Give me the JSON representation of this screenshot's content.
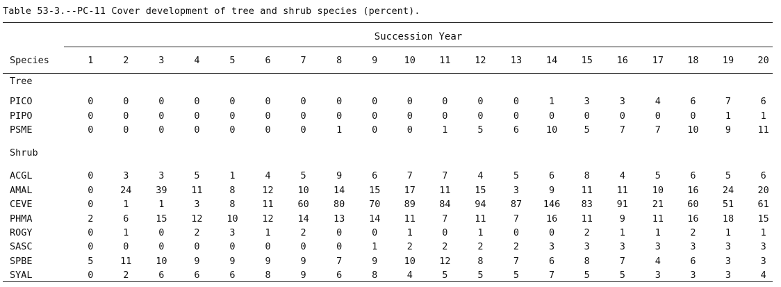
{
  "title": "Table 53-3.--PC-11 Cover development of tree and shrub species (percent).",
  "span_header": "Succession Year",
  "species_header": "Species",
  "years": [
    "1",
    "2",
    "3",
    "4",
    "5",
    "6",
    "7",
    "8",
    "9",
    "10",
    "11",
    "12",
    "13",
    "14",
    "15",
    "16",
    "17",
    "18",
    "19",
    "20"
  ],
  "sections": [
    {
      "label": "Tree",
      "rows": [
        {
          "species": "PICO",
          "values": [
            "0",
            "0",
            "0",
            "0",
            "0",
            "0",
            "0",
            "0",
            "0",
            "0",
            "0",
            "0",
            "0",
            "1",
            "3",
            "3",
            "4",
            "6",
            "7",
            "6"
          ]
        },
        {
          "species": "PIPO",
          "values": [
            "0",
            "0",
            "0",
            "0",
            "0",
            "0",
            "0",
            "0",
            "0",
            "0",
            "0",
            "0",
            "0",
            "0",
            "0",
            "0",
            "0",
            "0",
            "1",
            "1"
          ]
        },
        {
          "species": "PSME",
          "values": [
            "0",
            "0",
            "0",
            "0",
            "0",
            "0",
            "0",
            "1",
            "0",
            "0",
            "1",
            "5",
            "6",
            "10",
            "5",
            "7",
            "7",
            "10",
            "9",
            "11"
          ]
        }
      ]
    },
    {
      "label": "Shrub",
      "rows": [
        {
          "species": "ACGL",
          "values": [
            "0",
            "3",
            "3",
            "5",
            "1",
            "4",
            "5",
            "9",
            "6",
            "7",
            "7",
            "4",
            "5",
            "6",
            "8",
            "4",
            "5",
            "6",
            "5",
            "6"
          ]
        },
        {
          "species": "AMAL",
          "values": [
            "0",
            "24",
            "39",
            "11",
            "8",
            "12",
            "10",
            "14",
            "15",
            "17",
            "11",
            "15",
            "3",
            "9",
            "11",
            "11",
            "10",
            "16",
            "24",
            "20"
          ]
        },
        {
          "species": "CEVE",
          "values": [
            "0",
            "1",
            "1",
            "3",
            "8",
            "11",
            "60",
            "80",
            "70",
            "89",
            "84",
            "94",
            "87",
            "146",
            "83",
            "91",
            "21",
            "60",
            "51",
            "61"
          ]
        },
        {
          "species": "PHMA",
          "values": [
            "2",
            "6",
            "15",
            "12",
            "10",
            "12",
            "14",
            "13",
            "14",
            "11",
            "7",
            "11",
            "7",
            "16",
            "11",
            "9",
            "11",
            "16",
            "18",
            "15"
          ]
        },
        {
          "species": "ROGY",
          "values": [
            "0",
            "1",
            "0",
            "2",
            "3",
            "1",
            "2",
            "0",
            "0",
            "1",
            "0",
            "1",
            "0",
            "0",
            "2",
            "1",
            "1",
            "2",
            "1",
            "1"
          ]
        },
        {
          "species": "SASC",
          "values": [
            "0",
            "0",
            "0",
            "0",
            "0",
            "0",
            "0",
            "0",
            "1",
            "2",
            "2",
            "2",
            "2",
            "3",
            "3",
            "3",
            "3",
            "3",
            "3",
            "3"
          ]
        },
        {
          "species": "SPBE",
          "values": [
            "5",
            "11",
            "10",
            "9",
            "9",
            "9",
            "9",
            "7",
            "9",
            "10",
            "12",
            "8",
            "7",
            "6",
            "8",
            "7",
            "4",
            "6",
            "3",
            "3"
          ]
        },
        {
          "species": "SYAL",
          "values": [
            "0",
            "2",
            "6",
            "6",
            "6",
            "8",
            "9",
            "6",
            "8",
            "4",
            "5",
            "5",
            "5",
            "7",
            "5",
            "5",
            "3",
            "3",
            "3",
            "4"
          ]
        }
      ]
    }
  ]
}
